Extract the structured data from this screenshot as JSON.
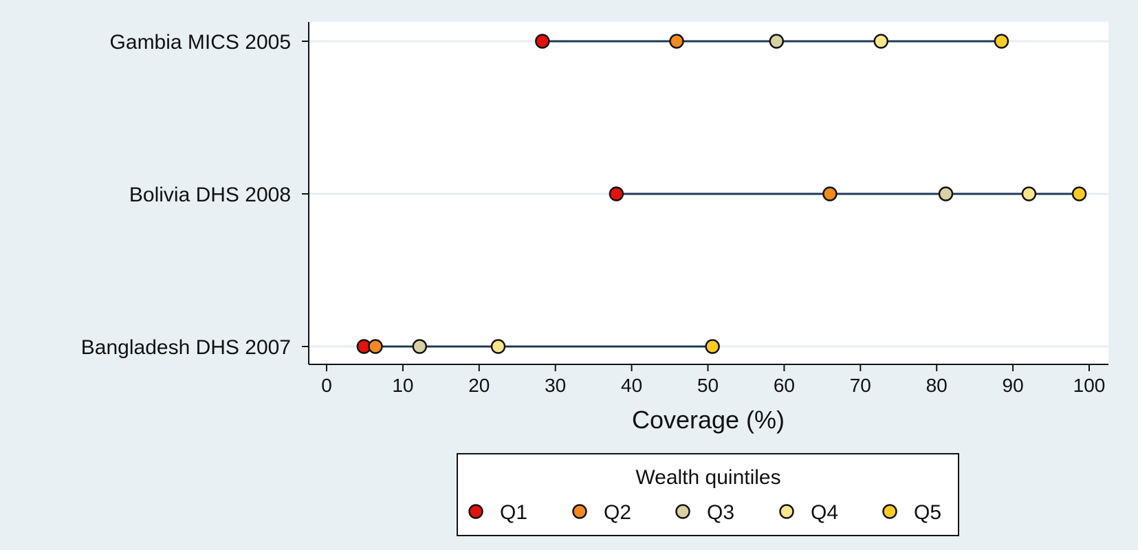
{
  "chart_data": {
    "type": "scatter",
    "subtype": "dot-range",
    "orientation": "horizontal",
    "categories": [
      "Gambia MICS 2005",
      "Bolivia DHS 2008",
      "Bangladesh DHS 2007"
    ],
    "xlabel": "Coverage (%)",
    "xlim": [
      0,
      100
    ],
    "xticks": [
      0,
      10,
      20,
      30,
      40,
      50,
      60,
      70,
      80,
      90,
      100
    ],
    "grid": true,
    "legend": {
      "title": "Wealth quintiles",
      "placement": "bottom"
    },
    "series": [
      {
        "name": "Q1",
        "color": "#e3120b",
        "values": [
          28.3,
          38.0,
          4.9
        ]
      },
      {
        "name": "Q2",
        "color": "#f28a1f",
        "values": [
          45.9,
          66.0,
          6.4
        ]
      },
      {
        "name": "Q3",
        "color": "#d9d0a3",
        "values": [
          59.0,
          81.2,
          12.2
        ]
      },
      {
        "name": "Q4",
        "color": "#fde58a",
        "values": [
          72.7,
          92.1,
          22.5
        ]
      },
      {
        "name": "Q5",
        "color": "#fecc26",
        "values": [
          88.5,
          98.7,
          50.6
        ]
      }
    ],
    "range_line_color": "#1f3a57",
    "grid_color": "#e6eef1"
  }
}
